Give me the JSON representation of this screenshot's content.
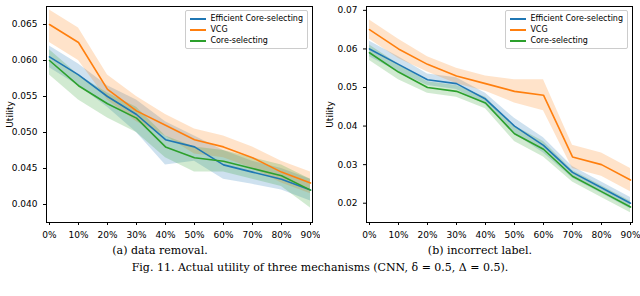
{
  "caption": "Fig. 11.  Actual utility of three mechanisms (CNN, δ = 0.5, Δ = 0.5).",
  "chart_data": [
    {
      "type": "line",
      "title": "(a) data removal.",
      "ylabel": "Utility",
      "x": [
        "0%",
        "10%",
        "20%",
        "30%",
        "40%",
        "50%",
        "60%",
        "70%",
        "80%",
        "90%"
      ],
      "ylim": [
        0.0375,
        0.0675
      ],
      "yticks": [
        {
          "value": 0.04,
          "label": "0.040"
        },
        {
          "value": 0.045,
          "label": "0.045"
        },
        {
          "value": 0.05,
          "label": "0.050"
        },
        {
          "value": 0.055,
          "label": "0.055"
        },
        {
          "value": 0.06,
          "label": "0.060"
        },
        {
          "value": 0.065,
          "label": "0.065"
        }
      ],
      "grid": false,
      "legend": "upper right",
      "series": [
        {
          "name": "Efficient Core-selecting",
          "color": "#1f77b4",
          "values": [
            0.0605,
            0.058,
            0.055,
            0.0525,
            0.049,
            0.048,
            0.0455,
            0.0445,
            0.0435,
            0.042
          ],
          "lower": [
            0.059,
            0.0565,
            0.0535,
            0.05,
            0.0455,
            0.046,
            0.0435,
            0.0428,
            0.042,
            0.0405
          ],
          "upper": [
            0.062,
            0.0595,
            0.0565,
            0.0545,
            0.0515,
            0.0495,
            0.0475,
            0.046,
            0.045,
            0.0435
          ]
        },
        {
          "name": "VCG",
          "color": "#ff7f0e",
          "values": [
            0.065,
            0.0625,
            0.056,
            0.053,
            0.051,
            0.049,
            0.048,
            0.0465,
            0.0445,
            0.043
          ],
          "lower": [
            0.0625,
            0.06,
            0.0545,
            0.0515,
            0.0495,
            0.047,
            0.0465,
            0.045,
            0.043,
            0.0415
          ],
          "upper": [
            0.067,
            0.0645,
            0.058,
            0.055,
            0.0525,
            0.0505,
            0.0495,
            0.048,
            0.046,
            0.0445
          ]
        },
        {
          "name": "Core-selecting",
          "color": "#2ca02c",
          "values": [
            0.06,
            0.0565,
            0.054,
            0.052,
            0.048,
            0.0465,
            0.046,
            0.045,
            0.044,
            0.042
          ],
          "lower": [
            0.058,
            0.0545,
            0.052,
            0.05,
            0.0465,
            0.0445,
            0.0445,
            0.0435,
            0.0425,
            0.0395
          ],
          "upper": [
            0.0615,
            0.058,
            0.0555,
            0.0535,
            0.0495,
            0.048,
            0.0475,
            0.0465,
            0.0455,
            0.0435
          ]
        }
      ]
    },
    {
      "type": "line",
      "title": "(b) incorrect label.",
      "ylabel": "Utility",
      "x": [
        "0%",
        "10%",
        "20%",
        "30%",
        "40%",
        "50%",
        "60%",
        "70%",
        "80%",
        "90%"
      ],
      "ylim": [
        0.015,
        0.071
      ],
      "yticks": [
        {
          "value": 0.02,
          "label": "0.02"
        },
        {
          "value": 0.03,
          "label": "0.03"
        },
        {
          "value": 0.04,
          "label": "0.04"
        },
        {
          "value": 0.05,
          "label": "0.05"
        },
        {
          "value": 0.06,
          "label": "0.06"
        },
        {
          "value": 0.07,
          "label": "0.07"
        }
      ],
      "grid": false,
      "legend": "upper right",
      "series": [
        {
          "name": "Efficient Core-selecting",
          "color": "#1f77b4",
          "values": [
            0.06,
            0.056,
            0.052,
            0.051,
            0.047,
            0.04,
            0.035,
            0.028,
            0.024,
            0.02
          ],
          "lower": [
            0.058,
            0.054,
            0.0505,
            0.0495,
            0.0455,
            0.038,
            0.033,
            0.0265,
            0.0225,
            0.0185
          ],
          "upper": [
            0.062,
            0.058,
            0.0535,
            0.0525,
            0.0485,
            0.042,
            0.037,
            0.0295,
            0.0255,
            0.0215
          ]
        },
        {
          "name": "VCG",
          "color": "#ff7f0e",
          "values": [
            0.065,
            0.06,
            0.056,
            0.053,
            0.051,
            0.049,
            0.048,
            0.032,
            0.03,
            0.026
          ],
          "lower": [
            0.0625,
            0.0575,
            0.054,
            0.051,
            0.049,
            0.046,
            0.044,
            0.029,
            0.027,
            0.023
          ],
          "upper": [
            0.0675,
            0.0625,
            0.058,
            0.055,
            0.053,
            0.052,
            0.052,
            0.035,
            0.033,
            0.029
          ]
        },
        {
          "name": "Core-selecting",
          "color": "#2ca02c",
          "values": [
            0.059,
            0.054,
            0.05,
            0.049,
            0.046,
            0.038,
            0.034,
            0.027,
            0.023,
            0.019
          ],
          "lower": [
            0.057,
            0.052,
            0.0485,
            0.0475,
            0.0445,
            0.036,
            0.032,
            0.0255,
            0.0215,
            0.0175
          ],
          "upper": [
            0.061,
            0.056,
            0.0515,
            0.0505,
            0.0475,
            0.04,
            0.036,
            0.0285,
            0.0245,
            0.0205
          ]
        }
      ]
    }
  ]
}
